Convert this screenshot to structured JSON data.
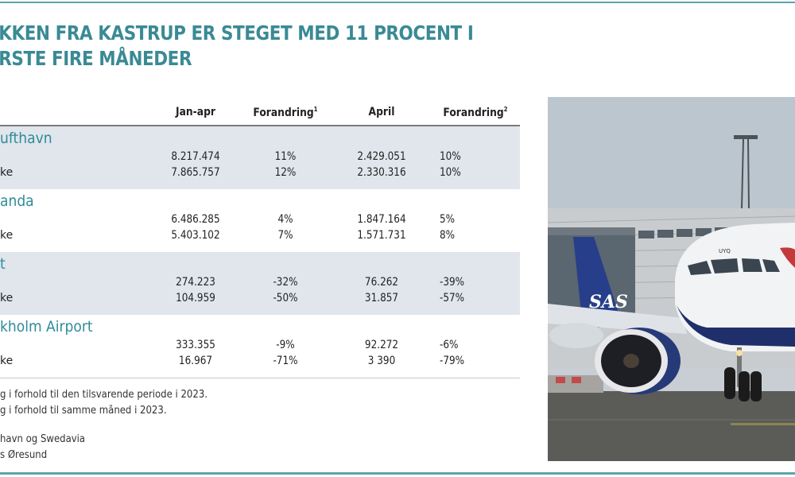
{
  "title": {
    "line1": "KKEN FRA KASTRUP ER STEGET MED 11 PROCENT I",
    "line2": "RSTE FIRE MÅNEDER"
  },
  "table": {
    "headers": {
      "col1": "Jan-apr",
      "col2": "Forandring",
      "col2_sup": "1",
      "col3": "April",
      "col4": "Forandring",
      "col4_sup": "2"
    },
    "groups": [
      {
        "name": "ufthavn",
        "rows": [
          {
            "label": "",
            "jan_apr": "8.217.474",
            "change1": "11%",
            "april": "2.429.051",
            "change2": "10%"
          },
          {
            "label": "ke",
            "jan_apr": "7.865.757",
            "change1": "12%",
            "april": "2.330.316",
            "change2": "10%"
          }
        ]
      },
      {
        "name": "anda",
        "rows": [
          {
            "label": "",
            "jan_apr": "6.486.285",
            "change1": "4%",
            "april": "1.847.164",
            "change2": "5%"
          },
          {
            "label": "ke",
            "jan_apr": "5.403.102",
            "change1": "7%",
            "april": "1.571.731",
            "change2": "8%"
          }
        ]
      },
      {
        "name": "t",
        "rows": [
          {
            "label": "",
            "jan_apr": "274.223",
            "change1": "-32%",
            "april": "76.262",
            "change2": "-39%"
          },
          {
            "label": "ke",
            "jan_apr": "104.959",
            "change1": "-50%",
            "april": "31.857",
            "change2": "-57%"
          }
        ]
      },
      {
        "name": "kholm Airport",
        "rows": [
          {
            "label": "",
            "jan_apr": "333.355",
            "change1": "-9%",
            "april": "92.272",
            "change2": "-6%"
          },
          {
            "label": "ke",
            "jan_apr": "16.967",
            "change1": "-71%",
            "april": "3 390",
            "change2": "-79%"
          }
        ]
      }
    ]
  },
  "notes": {
    "footnote1": "g i forhold til den tilsvarende periode i 2023.",
    "footnote2": "g i forhold til samme måned i 2023.",
    "source1": "havn og Swedavia",
    "source2": "s Øresund"
  },
  "photo": {
    "description": "Airplanes at Copenhagen Airport gate: British Airways jet nose and SAS tail",
    "tail_text": "SAS",
    "nose_text": "UYQ"
  },
  "colors": {
    "accent": "#3a8a95",
    "group_name": "#2d8c99",
    "shaded_row": "#e0e6ec",
    "rule": "#5aa4ad"
  }
}
